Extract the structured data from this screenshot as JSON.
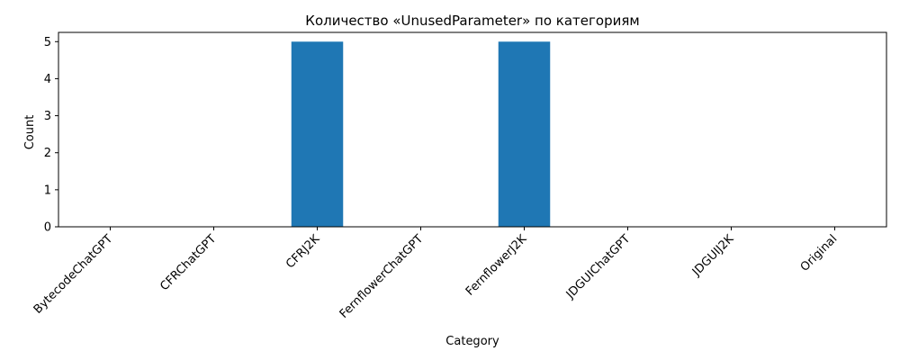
{
  "chart_data": {
    "type": "bar",
    "title": "Количество «UnusedParameter» по категориям",
    "xlabel": "Category",
    "ylabel": "Count",
    "categories": [
      "BytecodeChatGPT",
      "CFRChatGPT",
      "CFRJ2K",
      "FernflowerChatGPT",
      "FernflowerJ2K",
      "JDGUIChatGPT",
      "JDGUIJ2K",
      "Original"
    ],
    "values": [
      0,
      0,
      5,
      0,
      5,
      0,
      0,
      0
    ],
    "ylim": [
      0,
      5.25
    ],
    "yticks": [
      0,
      1,
      2,
      3,
      4,
      5
    ],
    "grid": false,
    "legend": "none",
    "colors": {
      "bar": "#1f77b4",
      "axis": "#000000",
      "background": "#ffffff"
    }
  }
}
